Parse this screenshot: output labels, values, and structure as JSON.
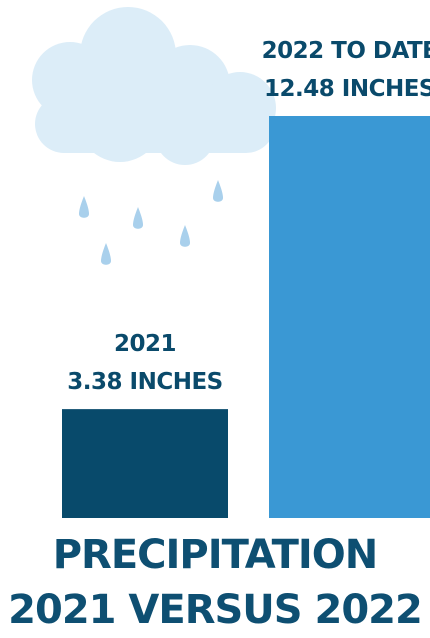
{
  "chart_data": {
    "type": "bar",
    "title": [
      "PRECIPITATION",
      "2021 VERSUS 2022"
    ],
    "categories": [
      "2021",
      "2022 TO DATE"
    ],
    "values": [
      3.38,
      12.48
    ],
    "unit": "INCHES",
    "value_labels": [
      "3.38 INCHES",
      "12.48 INCHES"
    ],
    "ylim": [
      0,
      12.48
    ],
    "bar_colors": [
      "#084a6b",
      "#3a98d4"
    ],
    "grid": false,
    "legend": "none",
    "decoration": "rain-cloud-icon",
    "decoration_colors": {
      "cloud": "#dcedf8",
      "drop": "#a9d0ec"
    }
  }
}
